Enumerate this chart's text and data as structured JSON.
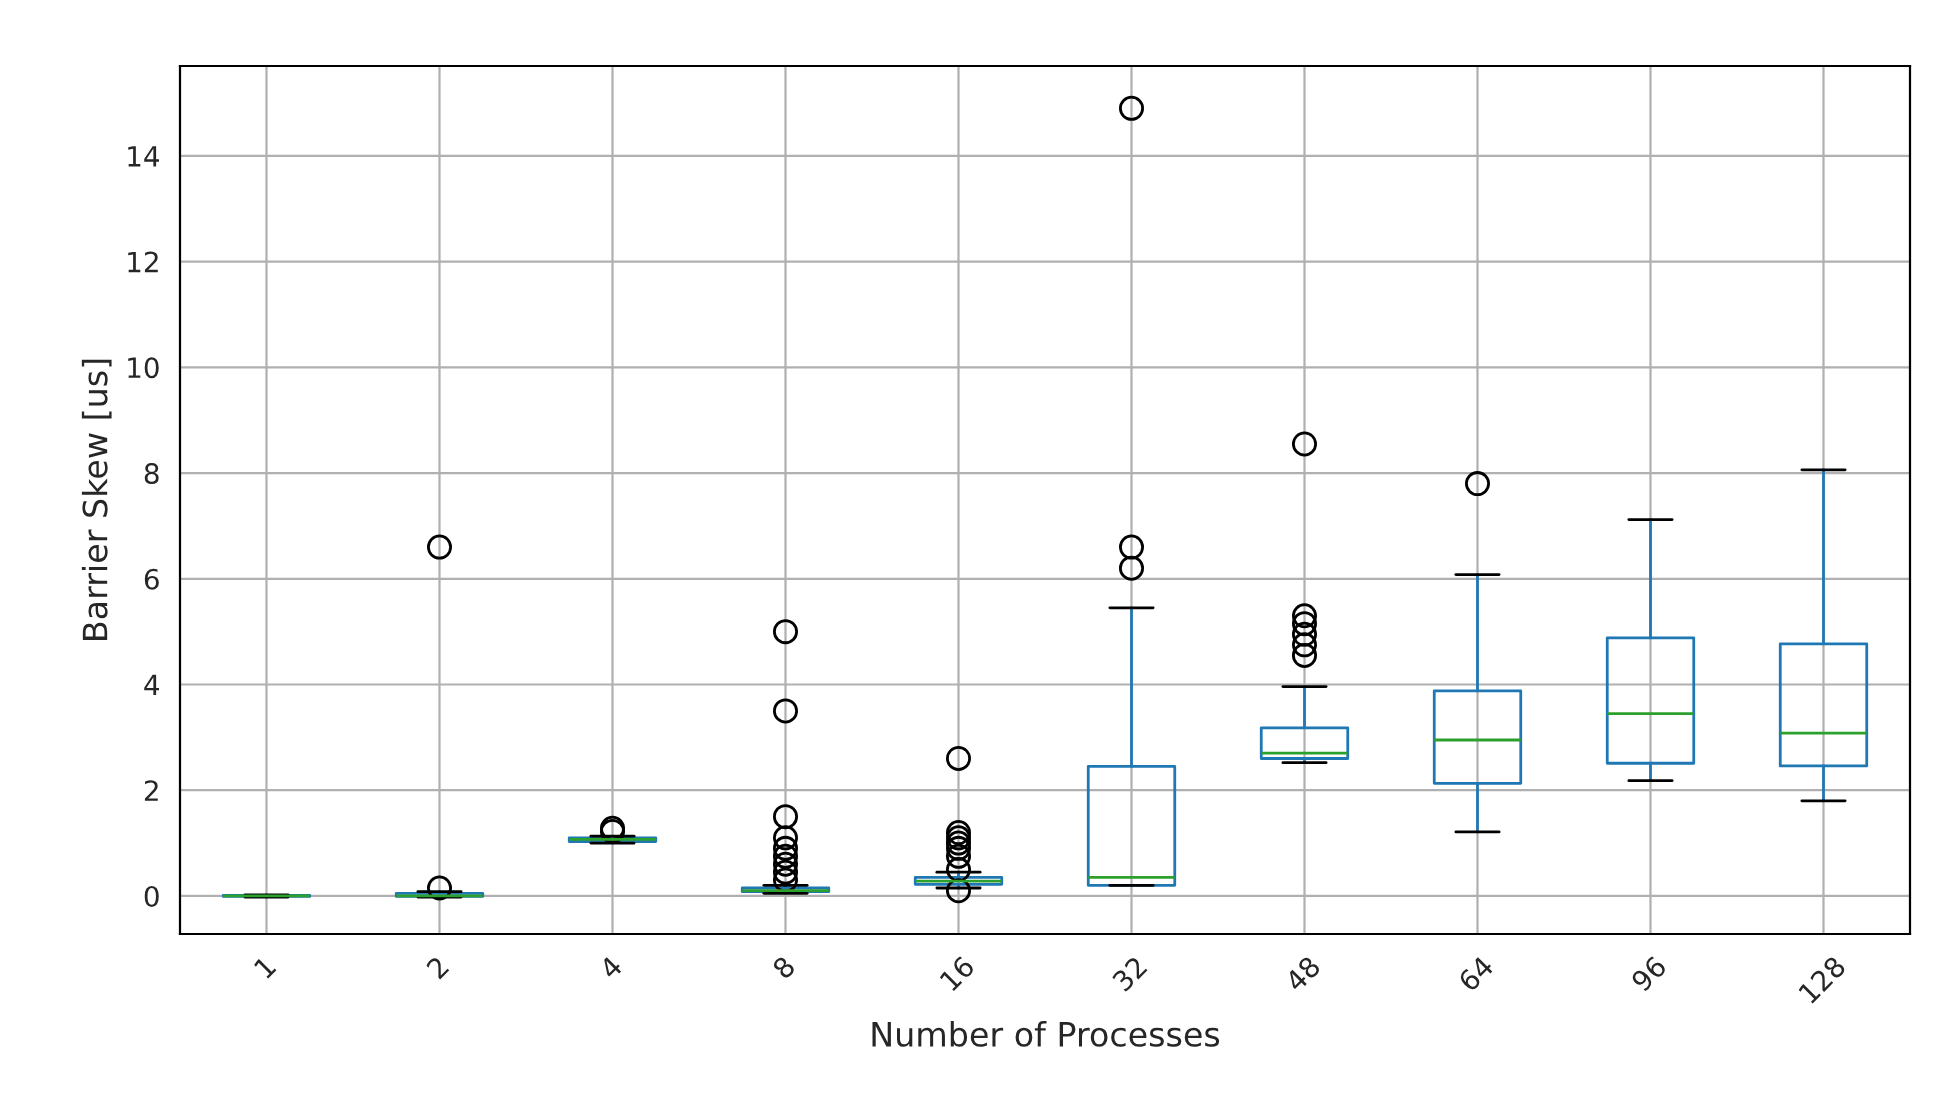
{
  "chart_data": {
    "type": "box",
    "xlabel": "Number of Processes",
    "ylabel": "Barrier Skew [us]",
    "categories": [
      "1",
      "2",
      "4",
      "8",
      "16",
      "32",
      "48",
      "64",
      "96",
      "128"
    ],
    "color": "#1f77b4",
    "boxes": [
      {
        "low": -0.02,
        "q1": -0.01,
        "median": 0.0,
        "q3": 0.01,
        "high": 0.02
      },
      {
        "low": -0.02,
        "q1": -0.01,
        "median": 0.0,
        "q3": 0.05,
        "high": 0.08,
        "outliers": [
          0.15,
          6.6
        ]
      },
      {
        "low": 1.0,
        "q1": 1.03,
        "median": 1.07,
        "q3": 1.1,
        "high": 1.13,
        "outliers": [
          1.22,
          1.28
        ]
      },
      {
        "low": 0.05,
        "q1": 0.08,
        "median": 0.1,
        "q3": 0.15,
        "high": 0.2,
        "outliers": [
          0.3,
          0.45,
          0.6,
          0.75,
          0.9,
          1.1,
          1.5,
          3.5,
          5.0
        ]
      },
      {
        "low": 0.15,
        "q1": 0.22,
        "median": 0.28,
        "q3": 0.35,
        "high": 0.45,
        "outliers": [
          0.1,
          0.5,
          0.75,
          0.9,
          1.0,
          1.1,
          1.2,
          2.6
        ]
      },
      {
        "low": 0.2,
        "q1": 0.2,
        "median": 0.35,
        "q3": 2.45,
        "high": 5.45,
        "outliers": [
          6.2,
          6.6,
          14.9
        ]
      },
      {
        "low": 2.52,
        "q1": 2.6,
        "median": 2.7,
        "q3": 3.18,
        "high": 3.96,
        "outliers": [
          4.55,
          4.75,
          4.95,
          5.15,
          5.3,
          8.55
        ]
      },
      {
        "low": 1.21,
        "q1": 2.13,
        "median": 2.95,
        "q3": 3.88,
        "high": 6.08,
        "outliers": [
          7.8
        ]
      },
      {
        "low": 2.18,
        "q1": 2.51,
        "median": 3.45,
        "q3": 4.88,
        "high": 7.12
      },
      {
        "low": 1.8,
        "q1": 2.46,
        "median": 3.08,
        "q3": 4.77,
        "high": 8.06
      }
    ],
    "ylim": [
      -0.72,
      15.7
    ],
    "yticks": [
      0,
      2,
      4,
      6,
      8,
      10,
      12,
      14
    ],
    "grid": true
  }
}
